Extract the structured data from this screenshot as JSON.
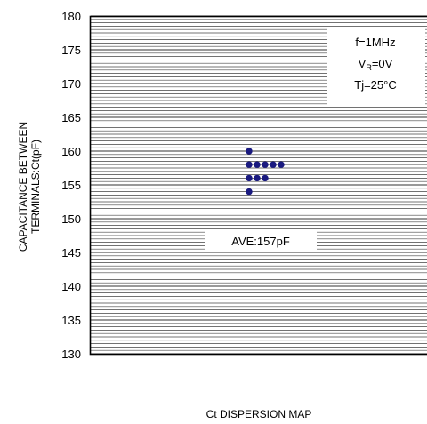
{
  "chart_data": {
    "type": "scatter",
    "title": "",
    "xlabel": "Ct DISPERSION MAP",
    "ylabel_lines": [
      "CAPACITANCE BETWEEN",
      "TERMINALS:Ct(pF)"
    ],
    "ylim": [
      130,
      180
    ],
    "yticks": [
      "180",
      "175",
      "170",
      "165",
      "160",
      "155",
      "150",
      "145",
      "140",
      "135",
      "130"
    ],
    "grid": true,
    "conditions": {
      "freq": "f=1MHz",
      "vr_prefix": "V",
      "vr_sub": "R",
      "vr_suffix": "=0V",
      "tj": "Tj=25°C"
    },
    "average_label": "AVE:157pF",
    "marker_color": "#1a1a80",
    "points": [
      {
        "col": 0,
        "y": 160
      },
      {
        "col": 0,
        "y": 158
      },
      {
        "col": 1,
        "y": 158
      },
      {
        "col": 2,
        "y": 158
      },
      {
        "col": 3,
        "y": 158
      },
      {
        "col": 4,
        "y": 158
      },
      {
        "col": 0,
        "y": 156
      },
      {
        "col": 1,
        "y": 156
      },
      {
        "col": 2,
        "y": 156
      },
      {
        "col": 0,
        "y": 154
      }
    ]
  }
}
